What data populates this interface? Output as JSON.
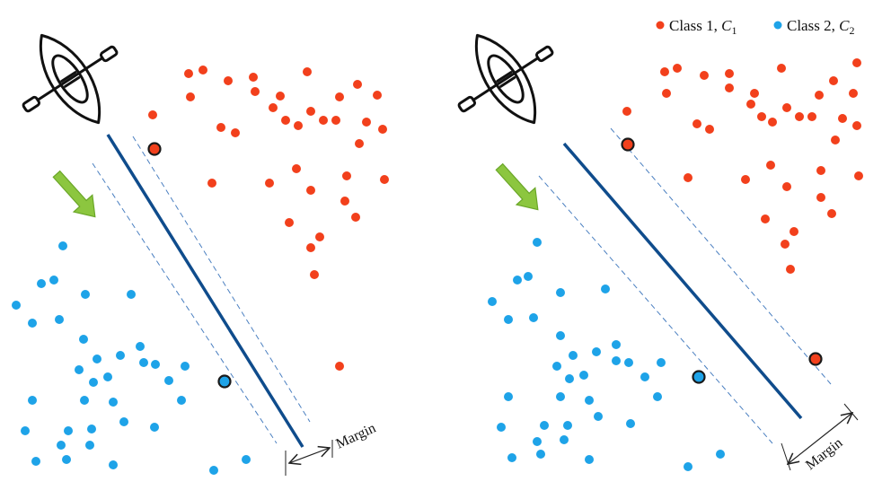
{
  "legend": {
    "class1": {
      "text": "Class 1, ",
      "symbol": "C",
      "subscript": "1",
      "color": "#f2401c"
    },
    "class2": {
      "text": "Class 2, ",
      "symbol": "C",
      "subscript": "2",
      "color": "#1ea3e8"
    }
  },
  "margin_label": "Margin",
  "icons": [
    "kayak-icon",
    "arrow-icon"
  ],
  "colors": {
    "class1": "#f2401c",
    "class2": "#1ea3e8",
    "boundary": "#0f4c8c",
    "margin_line": "#4a7fc0",
    "arrow": "#8cc63f",
    "support_vector_stroke": "#1a1a1a"
  }
}
